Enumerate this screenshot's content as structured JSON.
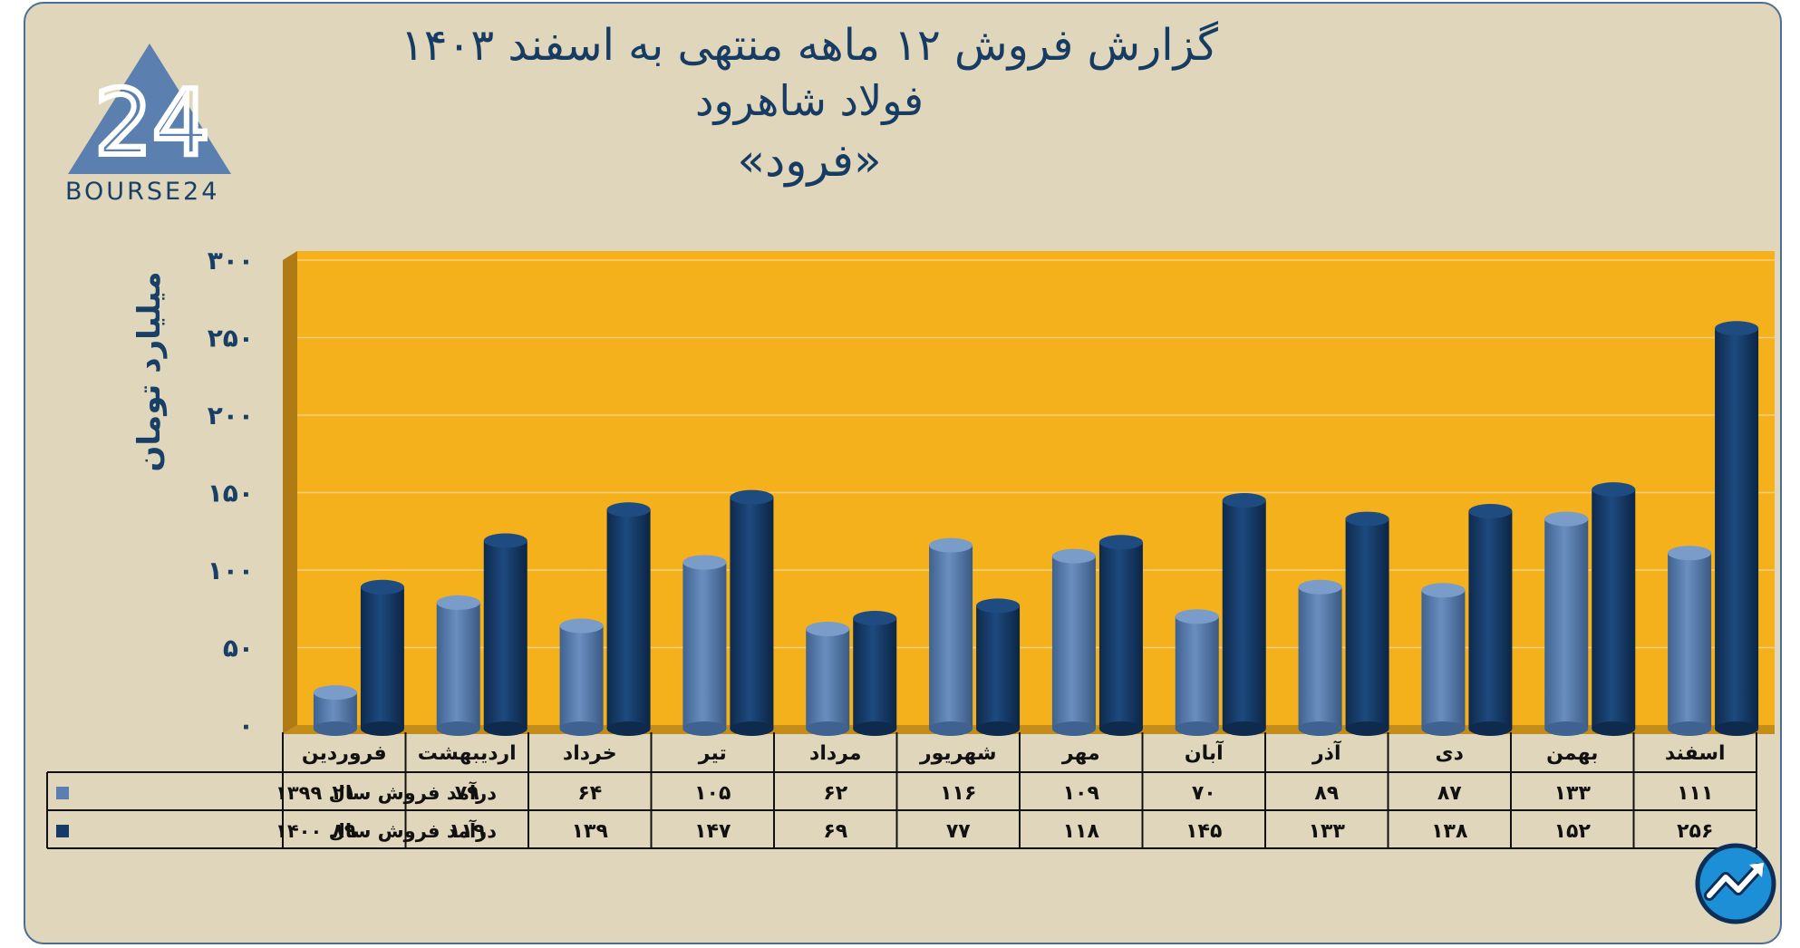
{
  "header": {
    "line1": "گزارش  فروش ۱۲ ماهه منتهی به اسفند ۱۴۰۳",
    "line2": "فولاد شاهرود",
    "line3": "«فرود»"
  },
  "logo": {
    "text": "BOURSE24",
    "mark": "24"
  },
  "colors": {
    "series1": "#5b7fae",
    "series2": "#153a66",
    "plot_bg": "#f5b11c",
    "frame_bg": "#e0d6bc",
    "title": "#173c63"
  },
  "chart_data": {
    "type": "bar",
    "categories": [
      "فروردین",
      "اردیبهشت",
      "خرداد",
      "تیر",
      "مرداد",
      "شهریور",
      "مهر",
      "آبان",
      "آذر",
      "دی",
      "بهمن",
      "اسفند"
    ],
    "series": [
      {
        "name": "درآمد فروش سال ۱۳۹۹",
        "values": [
          21,
          79,
          64,
          105,
          62,
          116,
          109,
          70,
          89,
          87,
          133,
          111
        ],
        "labels": [
          "۲۱",
          "۷۹",
          "۶۴",
          "۱۰۵",
          "۶۲",
          "۱۱۶",
          "۱۰۹",
          "۷۰",
          "۸۹",
          "۸۷",
          "۱۳۳",
          "۱۱۱"
        ]
      },
      {
        "name": "درآمد فروش سال ۱۴۰۰",
        "values": [
          89,
          119,
          139,
          147,
          69,
          77,
          118,
          145,
          133,
          138,
          152,
          256
        ],
        "labels": [
          "۸۹",
          "۱۱۹",
          "۱۳۹",
          "۱۴۷",
          "۶۹",
          "۷۷",
          "۱۱۸",
          "۱۴۵",
          "۱۳۳",
          "۱۳۸",
          "۱۵۲",
          "۲۵۶"
        ]
      }
    ],
    "ylabel": "میلیارد تومان",
    "ylim": [
      0,
      300
    ],
    "yticks": [
      0,
      50,
      100,
      150,
      200,
      250,
      300
    ],
    "ytick_labels": [
      "۰",
      "۵۰",
      "۱۰۰",
      "۱۵۰",
      "۲۰۰",
      "۲۵۰",
      "۳۰۰"
    ],
    "grid": true,
    "legend": "data-table-below"
  },
  "icons": {
    "corner": "trend-up-icon"
  }
}
